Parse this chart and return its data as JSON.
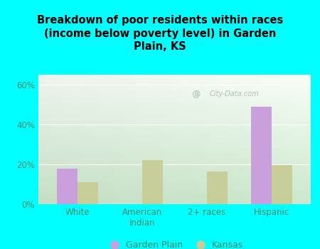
{
  "title": "Breakdown of poor residents within races\n(income below poverty level) in Garden\nPlain, KS",
  "categories": [
    "White",
    "American\nIndian",
    "2+ races",
    "Hispanic"
  ],
  "garden_plain": [
    18.0,
    0.0,
    0.0,
    49.0
  ],
  "kansas": [
    11.0,
    22.0,
    16.5,
    19.5
  ],
  "garden_plain_color": "#c9a0dc",
  "kansas_color": "#c8ce9a",
  "background_color": "#00ffff",
  "plot_bg_color_topleft": "#e8f5e0",
  "plot_bg_color_topright": "#f5fff8",
  "plot_bg_color_bottom": "#d4ead4",
  "title_color": "#000000",
  "tick_color": "#4a8a6a",
  "ylim": [
    0,
    65
  ],
  "yticks": [
    0,
    20,
    40,
    60
  ],
  "ytick_labels": [
    "0%",
    "20%",
    "40%",
    "60%"
  ],
  "bar_width": 0.32,
  "legend_labels": [
    "Garden Plain",
    "Kansas"
  ],
  "watermark": "City-Data.com"
}
